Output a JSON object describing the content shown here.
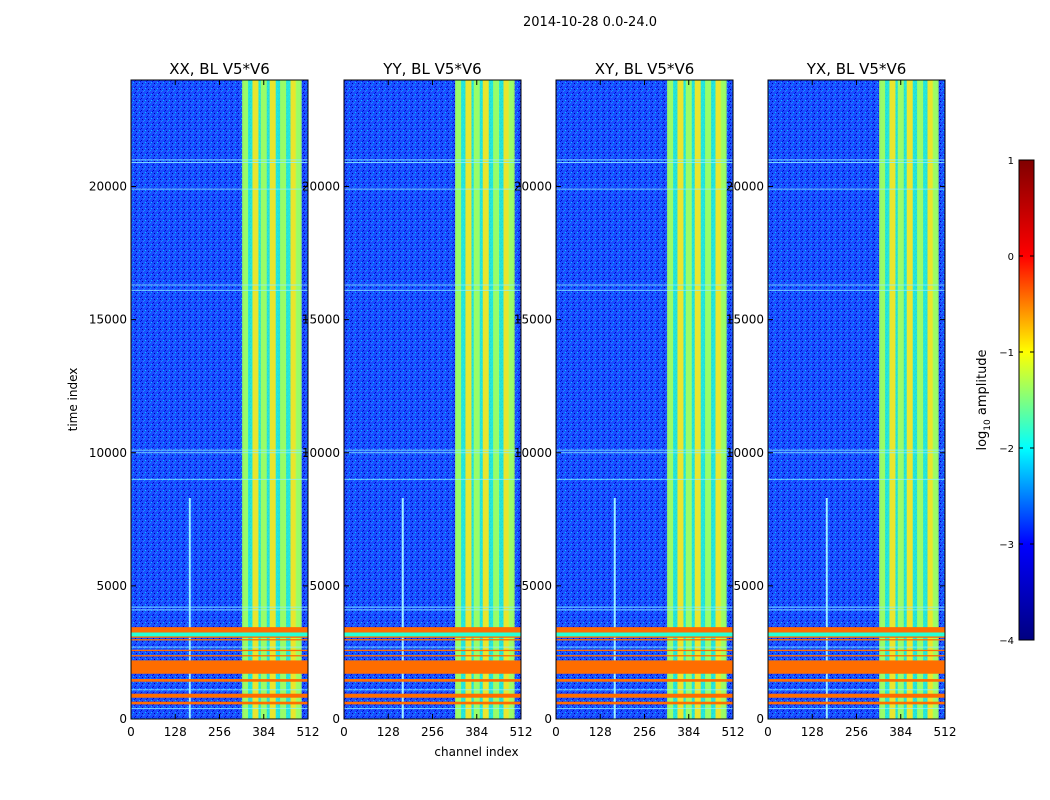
{
  "figure_title": "2014-10-28 0.0-24.0",
  "colors": {
    "background": "#00008f",
    "noise": "#1a5cff",
    "band": "#a6ff5a",
    "band_bright": "#ffe619",
    "band_cyan": "#27ffd6",
    "rfi": "#ff6d00",
    "colorbar_stops": [
      "#000080",
      "#0000ff",
      "#00ffff",
      "#ffff00",
      "#ff0000",
      "#800000"
    ]
  },
  "chart_data": [
    {
      "type": "heatmap",
      "title": "XX, BL V5*V6",
      "xlabel": "",
      "ylabel": "time index",
      "xlim": [
        0,
        512
      ],
      "ylim": [
        0,
        24000
      ],
      "xticks": [
        0,
        128,
        256,
        384,
        512
      ],
      "yticks": [
        0,
        5000,
        10000,
        15000,
        20000
      ]
    },
    {
      "type": "heatmap",
      "title": "YY, BL V5*V6",
      "xlabel": "channel index",
      "ylabel": "",
      "xlim": [
        0,
        512
      ],
      "ylim": [
        0,
        24000
      ],
      "xticks": [
        0,
        128,
        256,
        384,
        512
      ],
      "yticks": [
        0,
        5000,
        10000,
        15000,
        20000
      ]
    },
    {
      "type": "heatmap",
      "title": "XY, BL V5*V6",
      "xlabel": "",
      "ylabel": "",
      "xlim": [
        0,
        512
      ],
      "ylim": [
        0,
        24000
      ],
      "xticks": [
        0,
        128,
        256,
        384,
        512
      ],
      "yticks": [
        0,
        5000,
        10000,
        15000,
        20000
      ]
    },
    {
      "type": "heatmap",
      "title": "YX, BL V5*V6",
      "xlabel": "",
      "ylabel": "",
      "xlim": [
        0,
        512
      ],
      "ylim": [
        0,
        24000
      ],
      "xticks": [
        0,
        128,
        256,
        384,
        512
      ],
      "yticks": [
        0,
        5000,
        10000,
        15000,
        20000
      ]
    }
  ],
  "colorbar": {
    "label_prefix": "log",
    "label_sub": "10",
    "label_suffix": " amplitude",
    "range": [
      -4,
      1
    ],
    "ticks": [
      1,
      0,
      -1,
      -2,
      -3,
      -4
    ],
    "tick_labels": [
      "1",
      "0",
      "−1",
      "−2",
      "−3",
      "−4"
    ]
  },
  "features": {
    "band_columns": [
      330,
      360,
      384,
      410,
      440,
      470,
      485
    ],
    "band_range": [
      325,
      490
    ],
    "vertical_line_channel": 170,
    "vertical_line_top": 8300,
    "rfi_rows": [
      [
        3250,
        3450
      ],
      [
        3050,
        3100
      ],
      [
        2950,
        3000
      ],
      [
        2550,
        2600
      ],
      [
        2350,
        2400
      ],
      [
        1700,
        2200
      ],
      [
        1400,
        1500
      ],
      [
        800,
        950
      ],
      [
        550,
        650
      ]
    ],
    "cyan_rows": [
      [
        3100,
        3250
      ]
    ],
    "thin_rows": [
      400,
      1100,
      2700,
      4100,
      4200,
      9000,
      10000,
      10100,
      16100,
      16300,
      19900,
      20900,
      21000
    ]
  }
}
